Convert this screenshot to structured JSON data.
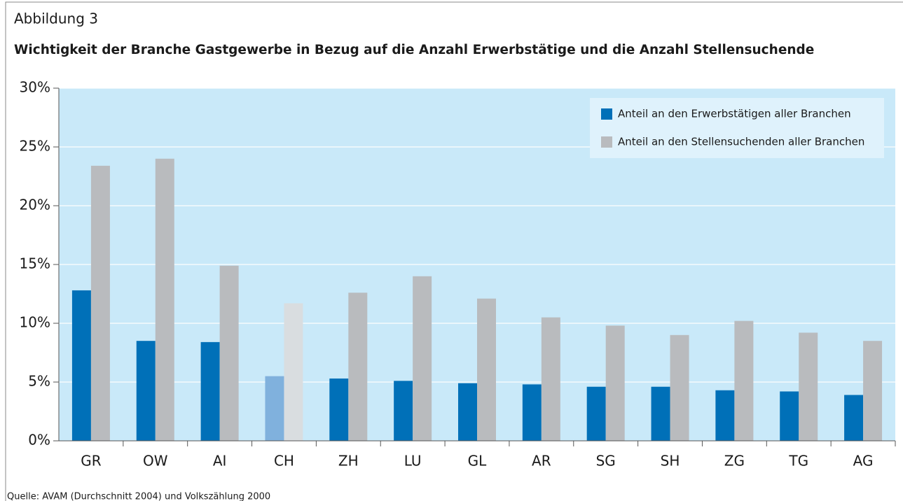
{
  "chart_data": {
    "type": "bar",
    "figure_label": "Abbildung 3",
    "title": "Wichtigkeit der Branche Gastgewerbe in Bezug auf die Anzahl Erwerbstätige und die Anzahl Stellensuchende",
    "source": "Quelle: AVAM (Durchschnitt 2004) und Volkszählung 2000",
    "categories": [
      "GR",
      "OW",
      "AI",
      "CH",
      "ZH",
      "LU",
      "GL",
      "AR",
      "SG",
      "SH",
      "ZG",
      "TG",
      "AG"
    ],
    "series": [
      {
        "name": "Anteil an den Erwerbstätigen aller Branchen",
        "color": "#0070b8",
        "colors": [
          "#0070b8",
          "#0070b8",
          "#0070b8",
          "#80b1dd",
          "#0070b8",
          "#0070b8",
          "#0070b8",
          "#0070b8",
          "#0070b8",
          "#0070b8",
          "#0070b8",
          "#0070b8",
          "#0070b8"
        ],
        "values": [
          12.8,
          8.5,
          8.4,
          5.5,
          5.3,
          5.1,
          4.9,
          4.8,
          4.6,
          4.6,
          4.3,
          4.2,
          3.9
        ]
      },
      {
        "name": "Anteil an den Stellensuchenden aller Branchen",
        "color": "#b9bbbe",
        "colors": [
          "#b9bbbe",
          "#b9bbbe",
          "#b9bbbe",
          "#d9dde0",
          "#b9bbbe",
          "#b9bbbe",
          "#b9bbbe",
          "#b9bbbe",
          "#b9bbbe",
          "#b9bbbe",
          "#b9bbbe",
          "#b9bbbe",
          "#b9bbbe"
        ],
        "values": [
          23.4,
          24.0,
          14.9,
          11.7,
          12.6,
          14.0,
          12.1,
          10.5,
          9.8,
          9.0,
          10.2,
          9.2,
          8.5
        ]
      }
    ],
    "ylim": [
      0,
      30
    ],
    "yticks": [
      {
        "value": 0,
        "label": "0%"
      },
      {
        "value": 5,
        "label": "5%"
      },
      {
        "value": 10,
        "label": "10%"
      },
      {
        "value": 15,
        "label": "15%"
      },
      {
        "value": 20,
        "label": "20%"
      },
      {
        "value": 25,
        "label": "25%"
      },
      {
        "value": 30,
        "label": "30%"
      }
    ],
    "grid": true,
    "legend": "top-right"
  }
}
